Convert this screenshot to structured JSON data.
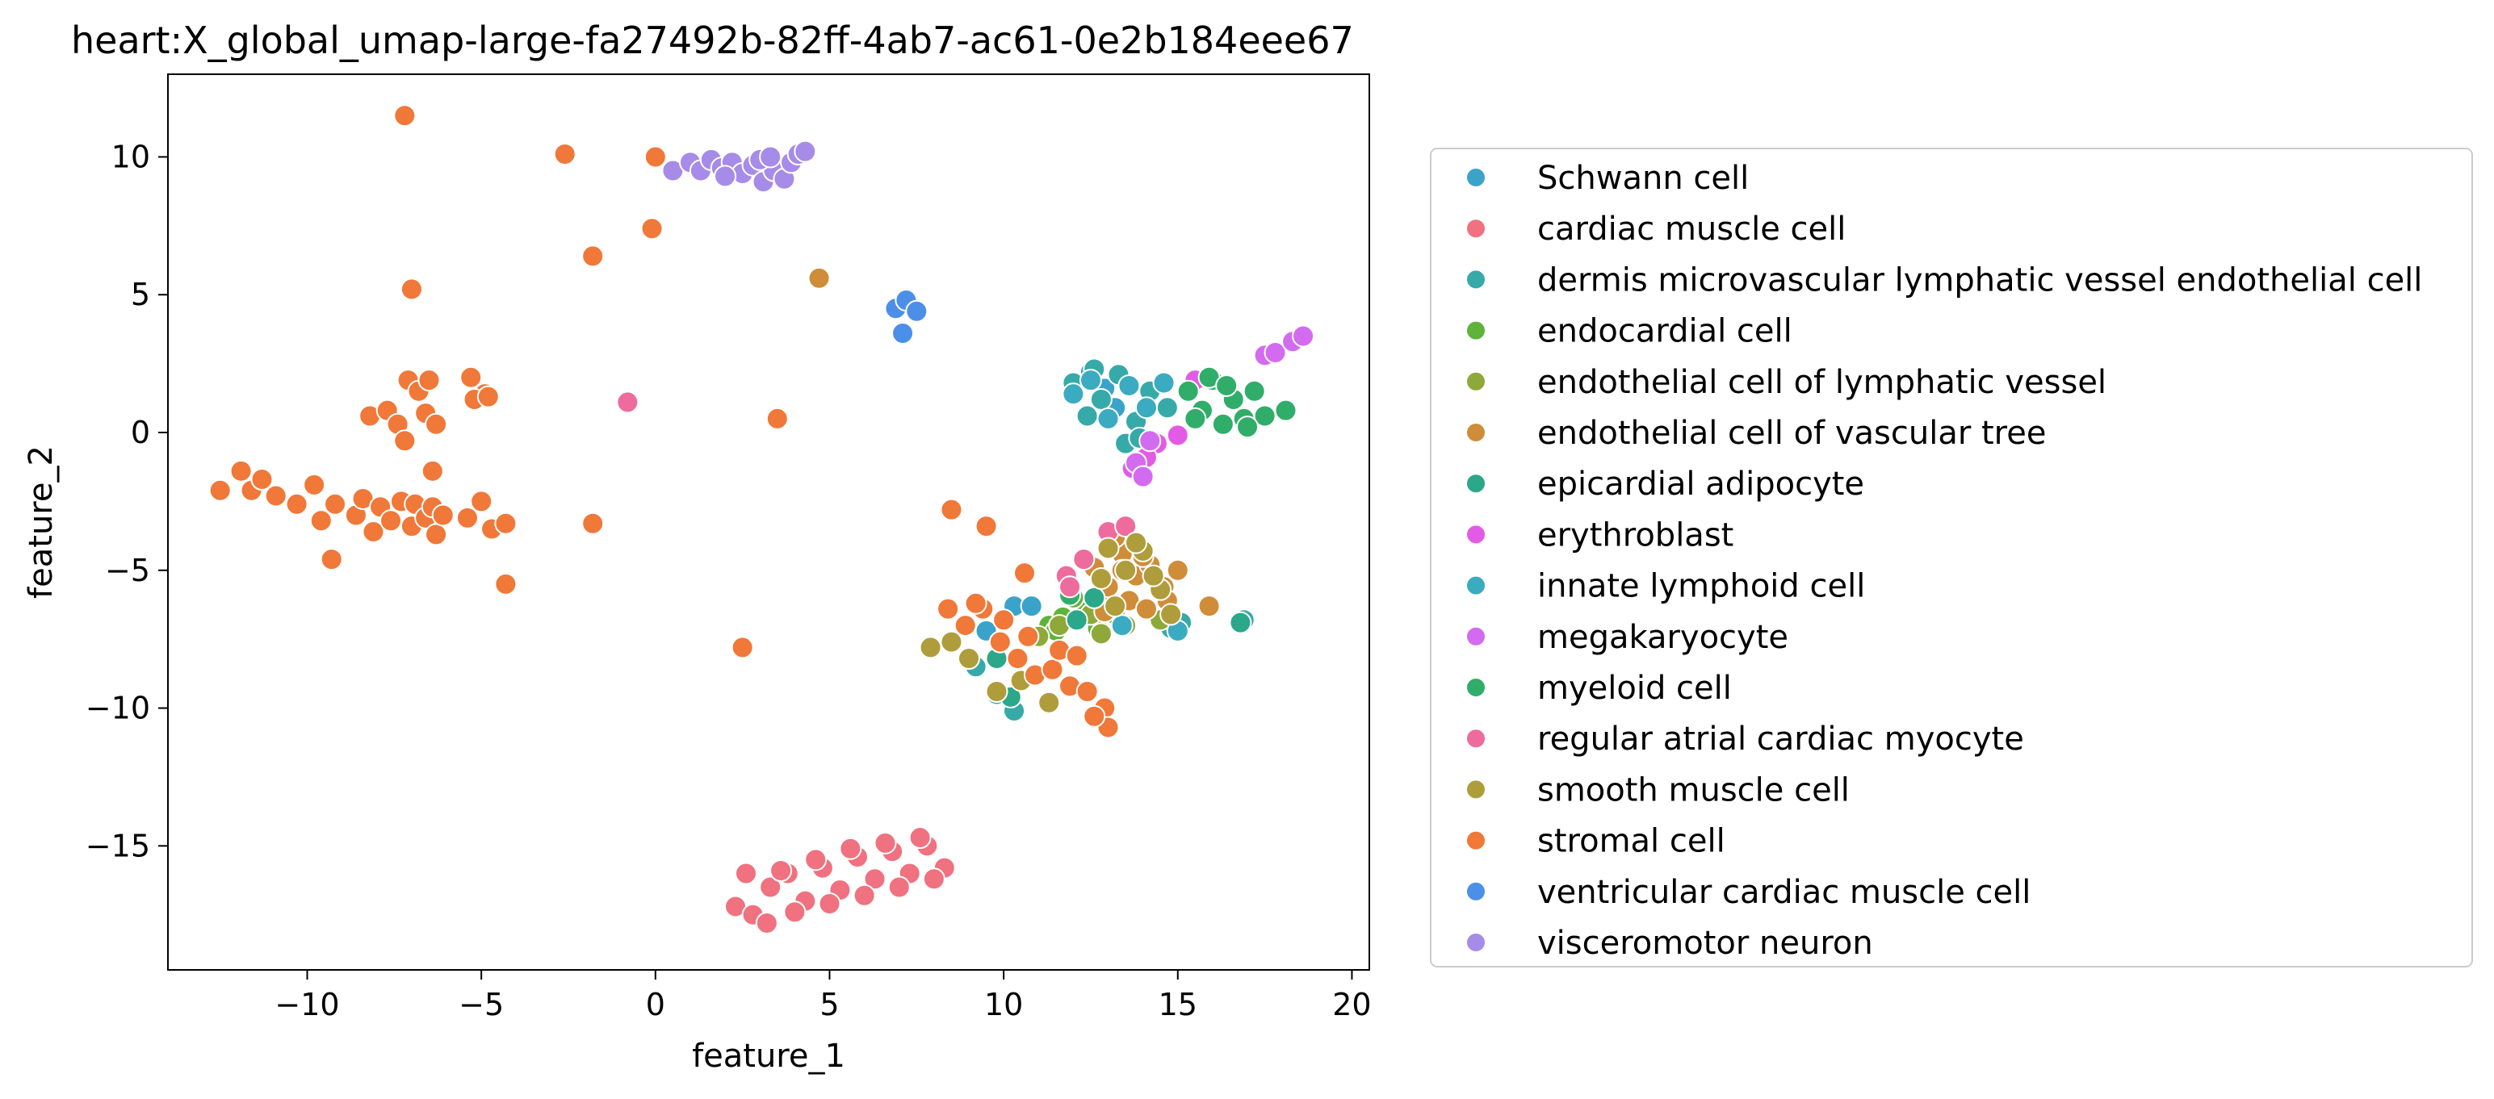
{
  "chart_data": {
    "type": "scatter",
    "title": "heart:X_global_umap-large-fa27492b-82ff-4ab7-ac61-0e2b184eee67",
    "xlabel": "feature_1",
    "ylabel": "feature_2",
    "xlim": [
      -14,
      20.5
    ],
    "ylim": [
      -19.5,
      13
    ],
    "xticks": [
      -10,
      -5,
      0,
      5,
      10,
      15,
      20
    ],
    "yticks": [
      -15,
      -10,
      -5,
      0,
      5,
      10
    ],
    "legend_position": "outside-right",
    "grid": false,
    "series": [
      {
        "name": "Schwann cell",
        "color": "#3ba3c9",
        "points": [
          [
            10.3,
            -6.3
          ],
          [
            10.8,
            -6.3
          ],
          [
            9.5,
            -7.2
          ],
          [
            12.5,
            2.2
          ],
          [
            12.9,
            1.6
          ],
          [
            13.2,
            0.9
          ]
        ]
      },
      {
        "name": "cardiac muscle cell",
        "color": "#f0717f",
        "points": [
          [
            2.3,
            -17.2
          ],
          [
            2.8,
            -17.5
          ],
          [
            3.3,
            -16.5
          ],
          [
            3.8,
            -16.0
          ],
          [
            4.3,
            -17.0
          ],
          [
            4.8,
            -15.8
          ],
          [
            5.3,
            -16.6
          ],
          [
            5.8,
            -15.4
          ],
          [
            6.3,
            -16.2
          ],
          [
            6.8,
            -15.2
          ],
          [
            7.3,
            -16.0
          ],
          [
            7.8,
            -15.0
          ],
          [
            8.3,
            -15.8
          ],
          [
            2.6,
            -16.0
          ],
          [
            3.2,
            -17.8
          ],
          [
            4.0,
            -17.4
          ],
          [
            5.0,
            -17.1
          ],
          [
            6.0,
            -16.8
          ],
          [
            7.0,
            -16.5
          ],
          [
            8.0,
            -16.2
          ],
          [
            4.6,
            -15.5
          ],
          [
            3.6,
            -15.9
          ],
          [
            5.6,
            -15.1
          ],
          [
            6.6,
            -14.9
          ],
          [
            7.6,
            -14.7
          ]
        ]
      },
      {
        "name": "dermis microvascular lymphatic vessel endothelial cell",
        "color": "#36aaa8",
        "points": [
          [
            12.0,
            1.8
          ],
          [
            12.4,
            0.6
          ],
          [
            12.8,
            1.2
          ],
          [
            13.3,
            2.1
          ],
          [
            13.8,
            0.4
          ],
          [
            14.2,
            1.5
          ],
          [
            14.7,
            0.9
          ],
          [
            13.5,
            -0.4
          ],
          [
            12.6,
            2.3
          ],
          [
            13.9,
            -0.2
          ],
          [
            9.2,
            -8.5
          ],
          [
            9.8,
            -9.5
          ],
          [
            10.3,
            -10.1
          ],
          [
            14.8,
            -7.1
          ],
          [
            15.1,
            -6.9
          ],
          [
            16.9,
            -6.8
          ]
        ]
      },
      {
        "name": "endocardial cell",
        "color": "#5fb33a",
        "points": [
          [
            11.3,
            -7.0
          ],
          [
            11.7,
            -6.7
          ],
          [
            12.3,
            -6.4
          ],
          [
            12.7,
            -7.1
          ],
          [
            13.2,
            -6.6
          ],
          [
            12.0,
            -6.0
          ],
          [
            12.9,
            -5.7
          ],
          [
            11.5,
            -7.2
          ]
        ]
      },
      {
        "name": "endothelial cell of lymphatic vessel",
        "color": "#8ea83a",
        "points": [
          [
            11.0,
            -7.4
          ],
          [
            11.6,
            -7.0
          ],
          [
            12.5,
            -6.6
          ],
          [
            13.5,
            -7.0
          ],
          [
            14.5,
            -6.8
          ],
          [
            12.8,
            -7.3
          ]
        ]
      },
      {
        "name": "endothelial cell of vascular tree",
        "color": "#cf8d3a",
        "points": [
          [
            4.7,
            5.6
          ],
          [
            12.6,
            -4.9
          ],
          [
            13.0,
            -5.6
          ],
          [
            13.4,
            -4.4
          ],
          [
            13.8,
            -5.2
          ],
          [
            14.2,
            -4.8
          ],
          [
            14.6,
            -5.6
          ],
          [
            15.0,
            -5.0
          ],
          [
            13.6,
            -6.1
          ],
          [
            12.9,
            -6.5
          ],
          [
            14.1,
            -6.4
          ],
          [
            13.2,
            -3.8
          ],
          [
            14.7,
            -6.1
          ],
          [
            15.9,
            -6.3
          ],
          [
            13.4,
            -5.0
          ],
          [
            14.0,
            -4.5
          ]
        ]
      },
      {
        "name": "epicardial adipocyte",
        "color": "#2aa889",
        "points": [
          [
            12.1,
            -6.8
          ],
          [
            12.6,
            -6.0
          ],
          [
            9.8,
            -8.2
          ],
          [
            10.2,
            -9.6
          ],
          [
            16.8,
            -6.9
          ]
        ]
      },
      {
        "name": "erythroblast",
        "color": "#e35be5",
        "points": [
          [
            14.4,
            -0.4
          ],
          [
            14.1,
            -0.9
          ],
          [
            15.0,
            -0.1
          ],
          [
            15.5,
            1.9
          ],
          [
            13.7,
            -1.3
          ]
        ]
      },
      {
        "name": "innate lymphoid cell",
        "color": "#3aabc0",
        "points": [
          [
            12.0,
            1.4
          ],
          [
            12.5,
            1.9
          ],
          [
            13.0,
            0.5
          ],
          [
            13.6,
            1.7
          ],
          [
            14.1,
            0.9
          ],
          [
            14.6,
            1.8
          ],
          [
            15.0,
            -7.2
          ],
          [
            13.4,
            -7.0
          ]
        ]
      },
      {
        "name": "megakaryocyte",
        "color": "#d36bf0",
        "points": [
          [
            17.5,
            2.8
          ],
          [
            17.8,
            2.9
          ],
          [
            18.3,
            3.3
          ],
          [
            18.6,
            3.5
          ],
          [
            14.2,
            -0.3
          ],
          [
            13.8,
            -1.1
          ],
          [
            14.0,
            -1.6
          ]
        ]
      },
      {
        "name": "myeloid cell",
        "color": "#31ad6a",
        "points": [
          [
            15.3,
            1.5
          ],
          [
            15.7,
            0.8
          ],
          [
            16.0,
            1.9
          ],
          [
            16.3,
            0.3
          ],
          [
            16.6,
            1.2
          ],
          [
            16.9,
            0.5
          ],
          [
            17.2,
            1.5
          ],
          [
            17.5,
            0.6
          ],
          [
            18.1,
            0.8
          ],
          [
            15.9,
            2.0
          ],
          [
            16.4,
            1.7
          ],
          [
            17.0,
            0.2
          ],
          [
            15.5,
            0.5
          ],
          [
            11.9,
            -5.9
          ]
        ]
      },
      {
        "name": "regular atrial cardiac myocyte",
        "color": "#ee6b9e",
        "points": [
          [
            -0.8,
            1.1
          ],
          [
            11.8,
            -5.2
          ],
          [
            12.3,
            -4.6
          ],
          [
            13.0,
            -3.6
          ],
          [
            13.5,
            -3.4
          ],
          [
            11.9,
            -5.6
          ]
        ]
      },
      {
        "name": "smooth muscle cell",
        "color": "#ae9d3a",
        "points": [
          [
            13.0,
            -4.2
          ],
          [
            13.5,
            -5.0
          ],
          [
            14.0,
            -4.3
          ],
          [
            14.5,
            -5.7
          ],
          [
            13.2,
            -6.3
          ],
          [
            14.8,
            -6.6
          ],
          [
            12.8,
            -5.3
          ],
          [
            7.9,
            -7.8
          ],
          [
            8.5,
            -7.6
          ],
          [
            9.0,
            -8.2
          ],
          [
            10.5,
            -9.0
          ],
          [
            11.3,
            -9.8
          ],
          [
            9.8,
            -9.4
          ],
          [
            13.8,
            -4.0
          ],
          [
            14.3,
            -5.2
          ]
        ]
      },
      {
        "name": "stromal cell",
        "color": "#f07838",
        "points": [
          [
            -12.5,
            -2.1
          ],
          [
            -11.9,
            -1.4
          ],
          [
            -11.6,
            -2.1
          ],
          [
            -11.3,
            -1.7
          ],
          [
            -10.9,
            -2.3
          ],
          [
            -10.3,
            -2.6
          ],
          [
            -9.8,
            -1.9
          ],
          [
            -9.6,
            -3.2
          ],
          [
            -9.3,
            -4.6
          ],
          [
            -9.2,
            -2.6
          ],
          [
            -8.6,
            -3.0
          ],
          [
            -8.4,
            -2.4
          ],
          [
            -8.1,
            -3.6
          ],
          [
            -7.9,
            -2.7
          ],
          [
            -7.6,
            -3.2
          ],
          [
            -7.3,
            -2.5
          ],
          [
            -7.0,
            -3.4
          ],
          [
            -6.9,
            -2.6
          ],
          [
            -6.6,
            -3.1
          ],
          [
            -6.4,
            -2.7
          ],
          [
            -6.3,
            -3.7
          ],
          [
            -6.1,
            -3.0
          ],
          [
            -5.4,
            -3.1
          ],
          [
            -5.0,
            -2.5
          ],
          [
            -4.7,
            -3.5
          ],
          [
            -4.3,
            -3.3
          ],
          [
            -4.3,
            -5.5
          ],
          [
            -7.2,
            11.5
          ],
          [
            -7.0,
            5.2
          ],
          [
            -2.6,
            10.1
          ],
          [
            -1.8,
            6.4
          ],
          [
            -1.8,
            -3.3
          ],
          [
            0.0,
            10.0
          ],
          [
            -0.1,
            7.4
          ],
          [
            -8.2,
            0.6
          ],
          [
            -7.7,
            0.8
          ],
          [
            -7.4,
            0.3
          ],
          [
            -7.1,
            1.9
          ],
          [
            -6.8,
            1.5
          ],
          [
            -6.6,
            0.7
          ],
          [
            -6.3,
            0.3
          ],
          [
            -6.5,
            1.9
          ],
          [
            -5.3,
            2.0
          ],
          [
            -4.9,
            1.4
          ],
          [
            -5.2,
            1.2
          ],
          [
            -4.8,
            1.3
          ],
          [
            -6.4,
            -1.4
          ],
          [
            -7.2,
            -0.3
          ],
          [
            3.5,
            0.5
          ],
          [
            8.5,
            -2.8
          ],
          [
            9.5,
            -3.4
          ],
          [
            10.6,
            -5.1
          ],
          [
            2.5,
            -7.8
          ],
          [
            8.4,
            -6.4
          ],
          [
            8.9,
            -7.0
          ],
          [
            9.4,
            -6.4
          ],
          [
            9.9,
            -7.6
          ],
          [
            10.4,
            -8.2
          ],
          [
            10.9,
            -8.8
          ],
          [
            11.4,
            -8.6
          ],
          [
            11.9,
            -9.2
          ],
          [
            12.4,
            -9.4
          ],
          [
            12.9,
            -10.0
          ],
          [
            13.0,
            -10.7
          ],
          [
            12.6,
            -10.3
          ],
          [
            11.6,
            -7.9
          ],
          [
            12.1,
            -8.1
          ],
          [
            10.0,
            -6.8
          ],
          [
            10.7,
            -7.4
          ],
          [
            9.2,
            -6.2
          ]
        ]
      },
      {
        "name": "ventricular cardiac muscle cell",
        "color": "#4c8fe8",
        "points": [
          [
            6.9,
            4.5
          ],
          [
            7.2,
            4.8
          ],
          [
            7.5,
            4.4
          ],
          [
            7.1,
            3.6
          ]
        ]
      },
      {
        "name": "visceromotor neuron",
        "color": "#a78be8",
        "points": [
          [
            0.5,
            9.5
          ],
          [
            1.0,
            9.8
          ],
          [
            1.3,
            9.5
          ],
          [
            1.6,
            9.9
          ],
          [
            1.9,
            9.6
          ],
          [
            2.2,
            9.8
          ],
          [
            2.5,
            9.4
          ],
          [
            2.8,
            9.7
          ],
          [
            3.1,
            9.1
          ],
          [
            3.4,
            9.5
          ],
          [
            3.7,
            9.2
          ],
          [
            3.9,
            9.8
          ],
          [
            4.1,
            10.1
          ],
          [
            4.3,
            10.2
          ],
          [
            3.0,
            9.9
          ],
          [
            2.0,
            9.3
          ],
          [
            3.3,
            10.0
          ]
        ]
      }
    ]
  }
}
